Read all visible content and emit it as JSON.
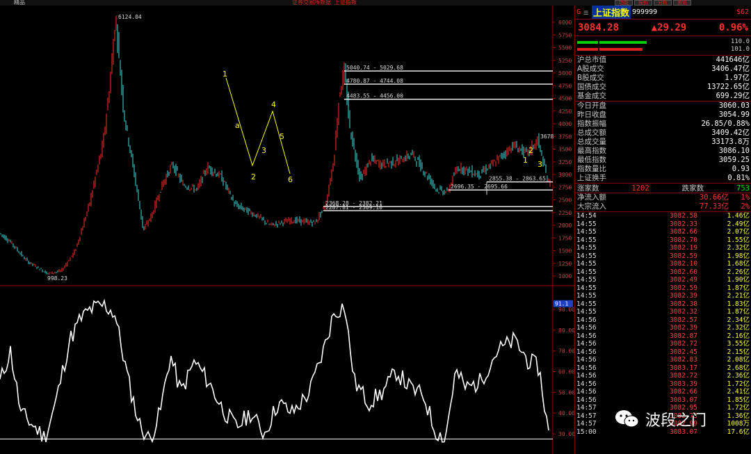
{
  "topbar": {
    "left_label": "精品",
    "title": "证券交易所数据 上证指数",
    "buttons": [
      "功能",
      "报价",
      "分析",
      "资讯"
    ]
  },
  "header": {
    "flag": "G",
    "menu_icon": "menu-icon",
    "name": "上证指数",
    "code": "999999",
    "tag": "$62"
  },
  "quote": {
    "price": "3084.28",
    "change": "▲29.29",
    "pct": "0.96%"
  },
  "bars": {
    "top_value": "110.0",
    "bottom_value": "101.0"
  },
  "stats1": [
    {
      "k": "沪总市值",
      "v": "441646亿"
    },
    {
      "k": "A股成交",
      "v": "3406.47亿"
    },
    {
      "k": "B股成交",
      "v": "1.97亿"
    },
    {
      "k": "国债成交",
      "v": "13722.65亿"
    },
    {
      "k": "基金成交",
      "v": "699.29亿"
    }
  ],
  "stats2": [
    {
      "k": "今日开盘",
      "v": "3060.03",
      "c": "red"
    },
    {
      "k": "昨日收盘",
      "v": "3054.99",
      "c": ""
    },
    {
      "k": "指数振幅",
      "v": "26.85/0.88%",
      "c": ""
    },
    {
      "k": "总成交额",
      "v": "3409.42亿",
      "c": ""
    },
    {
      "k": "总成交量",
      "v": "33173.8万",
      "c": ""
    },
    {
      "k": "最高指数",
      "v": "3086.10",
      "c": "red"
    },
    {
      "k": "最低指数",
      "v": "3059.25",
      "c": "red"
    },
    {
      "k": "指数量比",
      "v": "0.93",
      "c": "green"
    },
    {
      "k": "上证换手",
      "v": "0.81%",
      "c": ""
    }
  ],
  "breadth": {
    "up_label": "涨家数",
    "up": "1202",
    "down_label": "跌家数",
    "down": "753"
  },
  "flows": [
    {
      "k": "净流入额",
      "v": "30.66亿",
      "p": "1%"
    },
    {
      "k": "大宗流入",
      "v": "77.33亿",
      "p": "2%"
    }
  ],
  "ticks": [
    [
      "14:54",
      "3082.58",
      "1.46亿"
    ],
    [
      "14:55",
      "3082.33",
      "2.49亿"
    ],
    [
      "14:55",
      "3082.66",
      "2.07亿"
    ],
    [
      "14:55",
      "3082.70",
      "1.55亿"
    ],
    [
      "14:55",
      "3082.19",
      "2.32亿"
    ],
    [
      "14:55",
      "3082.59",
      "1.98亿"
    ],
    [
      "14:55",
      "3082.10",
      "1.68亿"
    ],
    [
      "14:55",
      "3082.60",
      "2.26亿"
    ],
    [
      "14:55",
      "3082.49",
      "1.90亿"
    ],
    [
      "14:55",
      "3082.59",
      "1.87亿"
    ],
    [
      "14:55",
      "3082.39",
      "2.21亿"
    ],
    [
      "14:55",
      "3082.38",
      "1.83亿"
    ],
    [
      "14:55",
      "3082.32",
      "1.87亿"
    ],
    [
      "14:56",
      "3082.57",
      "2.34亿"
    ],
    [
      "14:56",
      "3082.39",
      "2.32亿"
    ],
    [
      "14:56",
      "3082.87",
      "2.16亿"
    ],
    [
      "14:56",
      "3082.72",
      "3.55亿"
    ],
    [
      "14:56",
      "3082.45",
      "2.15亿"
    ],
    [
      "14:56",
      "3082.83",
      "2.08亿"
    ],
    [
      "14:56",
      "3083.17",
      "2.68亿"
    ],
    [
      "14:56",
      "3082.72",
      "2.36亿"
    ],
    [
      "14:56",
      "3083.39",
      "1.72亿"
    ],
    [
      "14:56",
      "3082.66",
      "2.41亿"
    ],
    [
      "14:56",
      "3083.07",
      "1.85亿"
    ],
    [
      "14:57",
      "3082.95",
      "1.72亿"
    ],
    [
      "14:57",
      "3082.73",
      "1.36亿"
    ],
    [
      "14:57",
      "3082.99",
      "1008万"
    ],
    [
      "15:00",
      "3083.07",
      "17.6亿"
    ]
  ],
  "chart": {
    "price_axis": [
      "6000",
      "5750",
      "5500",
      "5250",
      "5000",
      "4750",
      "4500",
      "4250",
      "4000",
      "3750",
      "3500",
      "3250",
      "3000",
      "2750",
      "2500",
      "2250",
      "2000",
      "1750",
      "1500",
      "1250",
      "1000"
    ],
    "osc_axis": [
      "90.00",
      "80.00",
      "70.00",
      "60.00",
      "50.00",
      "40.00",
      "30.00"
    ],
    "osc_marker": "91.1",
    "peak_label": "6124.04",
    "low_label": "998.23",
    "fib_labels": [
      "5040.74 - 5029.68",
      "4780.87 - 4744.08",
      "4483.55 - 4456.00",
      "2855.38 - 2863.65",
      "2696.35 - 2695.66",
      "2368.28 - 2382.21",
      "2287.81 - 2309.10",
      "3678"
    ],
    "wave_labels": [
      "1",
      "a",
      "2",
      "3",
      "4",
      "5",
      "6"
    ],
    "late_wave_labels": [
      "1",
      "2",
      "3"
    ]
  },
  "watermark": {
    "text": "波段之门"
  }
}
